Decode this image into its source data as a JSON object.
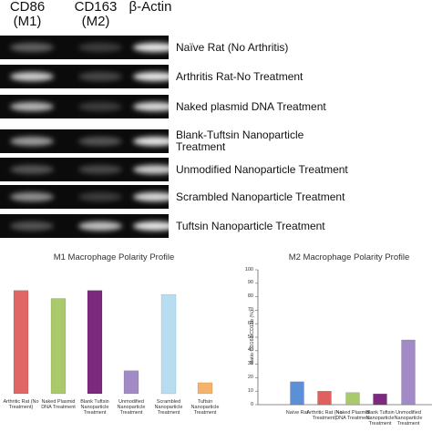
{
  "gel": {
    "columns": [
      "CD86\n(M1)",
      "CD163\n(M2)",
      "β-Actin"
    ],
    "rows": [
      "Naïve Rat (No Arthritis)",
      "Arthritis Rat-No Treatment",
      "Naked plasmid DNA Treatment",
      "Blank-Tuftsin Nanoparticle Treatment",
      "Unmodified Nanoparticle Treatment",
      "Scrambled Nanoparticle Treatment",
      "Tuftsin Nanoparticle Treatment"
    ]
  },
  "chart_data": [
    {
      "type": "bar",
      "title": "M1 Macrophage Polarity Profile",
      "categories": [
        "Arthritic Rat (No Treatment)",
        "Naked Plasmid DNA Treatment",
        "Blank Tuftsin Nanoparticle Treatment",
        "Unmodified Nanoparticle Treatment",
        "Scrambled Nanoparticle Treatment",
        "Tuftsin Nanoparticle Treatment"
      ],
      "values": [
        103,
        95,
        103,
        23,
        99,
        11
      ],
      "colors": [
        "#e06666",
        "#a9c96b",
        "#7b2a7e",
        "#a18ac6",
        "#b7def0",
        "#f4b26b"
      ],
      "ylim": [
        0,
        120
      ]
    },
    {
      "type": "bar",
      "title": "M2 Macrophage Polarity Profile",
      "y_label": "Ratio CD163:CD11b (%)",
      "categories": [
        "Naïve Rat",
        "Arthritic Rat (No Treatment)",
        "Naked Plasmid DNA Treatment",
        "Blank Tuftsin Nanoparticle Treatment",
        "Unmodified Nanoparticle Treatment"
      ],
      "values": [
        17,
        10,
        9,
        8,
        48
      ],
      "colors": [
        "#5b8fd6",
        "#e06060",
        "#a9c96b",
        "#7b2a7e",
        "#a18ac6"
      ],
      "ylim": [
        0,
        100
      ],
      "yticks": [
        0,
        10,
        20,
        30,
        40,
        50,
        60,
        70,
        80,
        90,
        100
      ],
      "grid": false
    }
  ]
}
